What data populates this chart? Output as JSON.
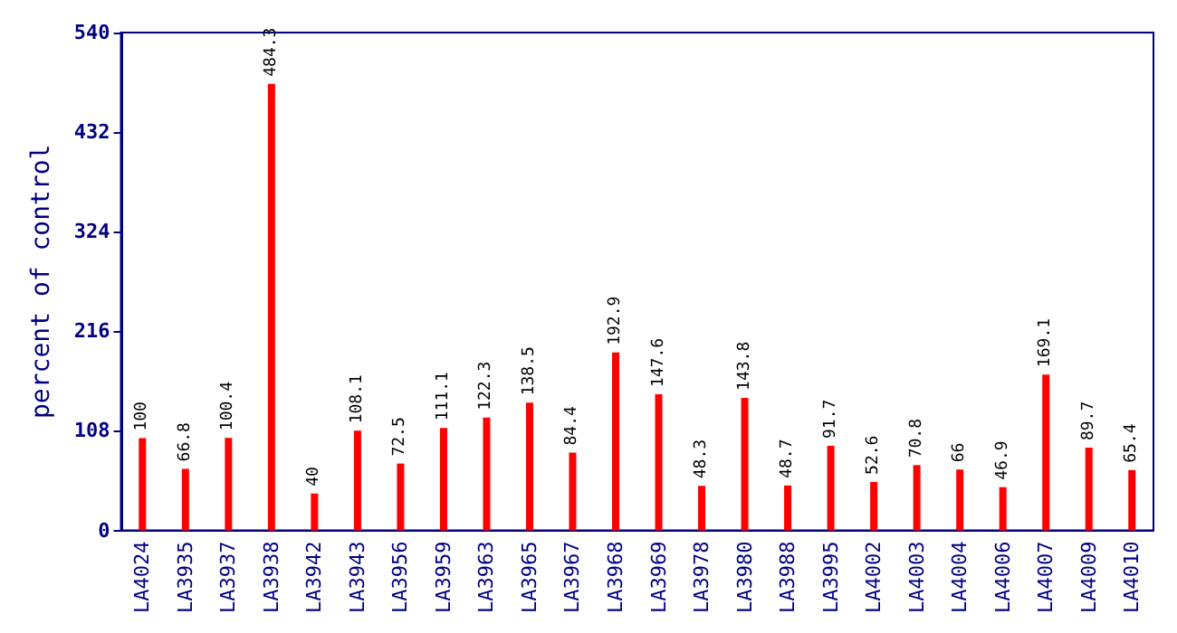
{
  "chart_data": {
    "type": "bar",
    "ylabel": "percent of control",
    "categories": [
      "LA4024",
      "LA3935",
      "LA3937",
      "LA3938",
      "LA3942",
      "LA3943",
      "LA3956",
      "LA3959",
      "LA3963",
      "LA3965",
      "LA3967",
      "LA3968",
      "LA3969",
      "LA3978",
      "LA3980",
      "LA3988",
      "LA3995",
      "LA4002",
      "LA4003",
      "LA4004",
      "LA4006",
      "LA4007",
      "LA4009",
      "LA4010"
    ],
    "values": [
      100,
      66.8,
      100.4,
      484.3,
      40,
      108.1,
      72.5,
      111.1,
      122.3,
      138.5,
      84.4,
      192.9,
      147.6,
      48.3,
      143.8,
      48.7,
      91.7,
      52.6,
      70.8,
      66,
      46.9,
      169.1,
      89.7,
      65.4
    ],
    "color": "#ff0000",
    "ylim": [
      0,
      540
    ],
    "yticks": [
      0,
      108,
      216,
      324,
      432,
      540
    ],
    "data_labels": true
  }
}
